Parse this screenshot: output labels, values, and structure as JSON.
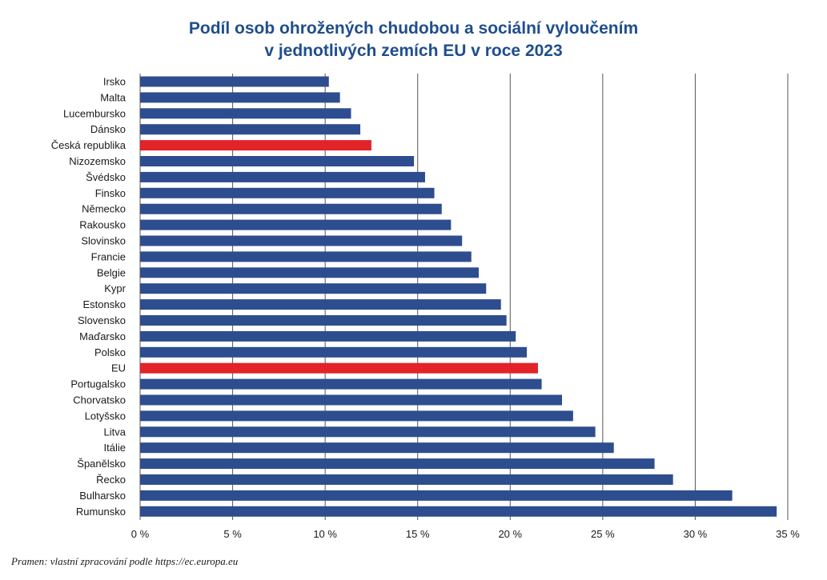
{
  "chart_data": {
    "type": "bar",
    "orientation": "horizontal",
    "title_line1": "Podíl osob ohrožených chudobou a sociální vyloučením",
    "title_line2": "v jednotlivých zemích EU v roce 2023",
    "categories": [
      "Irsko",
      "Malta",
      "Lucembursko",
      "Dánsko",
      "Česká republika",
      "Nizozemsko",
      "Švédsko",
      "Finsko",
      "Německo",
      "Rakousko",
      "Slovinsko",
      "Francie",
      "Belgie",
      "Kypr",
      "Estonsko",
      "Slovensko",
      "Maďarsko",
      "Polsko",
      "EU",
      "Portugalsko",
      "Chorvatsko",
      "Lotyšsko",
      "Litva",
      "Itálie",
      "Španělsko",
      "Řecko",
      "Bulharsko",
      "Rumunsko"
    ],
    "values": [
      10.2,
      10.8,
      11.4,
      11.9,
      12.5,
      14.8,
      15.4,
      15.9,
      16.3,
      16.8,
      17.4,
      17.9,
      18.3,
      18.7,
      19.5,
      19.8,
      20.3,
      20.9,
      21.5,
      21.7,
      22.8,
      23.4,
      24.6,
      25.6,
      27.8,
      28.8,
      32.0,
      34.4
    ],
    "highlight_categories": [
      "Česká republika",
      "EU"
    ],
    "colors": {
      "bar": "#2e4d8f",
      "highlight": "#e2232a",
      "title": "#1f4e8c",
      "grid": "#555555"
    },
    "xlim": [
      0,
      35
    ],
    "xticks": [
      0,
      5,
      10,
      15,
      20,
      25,
      30,
      35
    ],
    "xtick_labels": [
      "0 %",
      "5 %",
      "10 %",
      "15 %",
      "20 %",
      "25 %",
      "30 %",
      "35 %"
    ],
    "grid": true,
    "legend": "none"
  },
  "source": "Pramen: vlastní zpracování podle https://ec.europa.eu"
}
